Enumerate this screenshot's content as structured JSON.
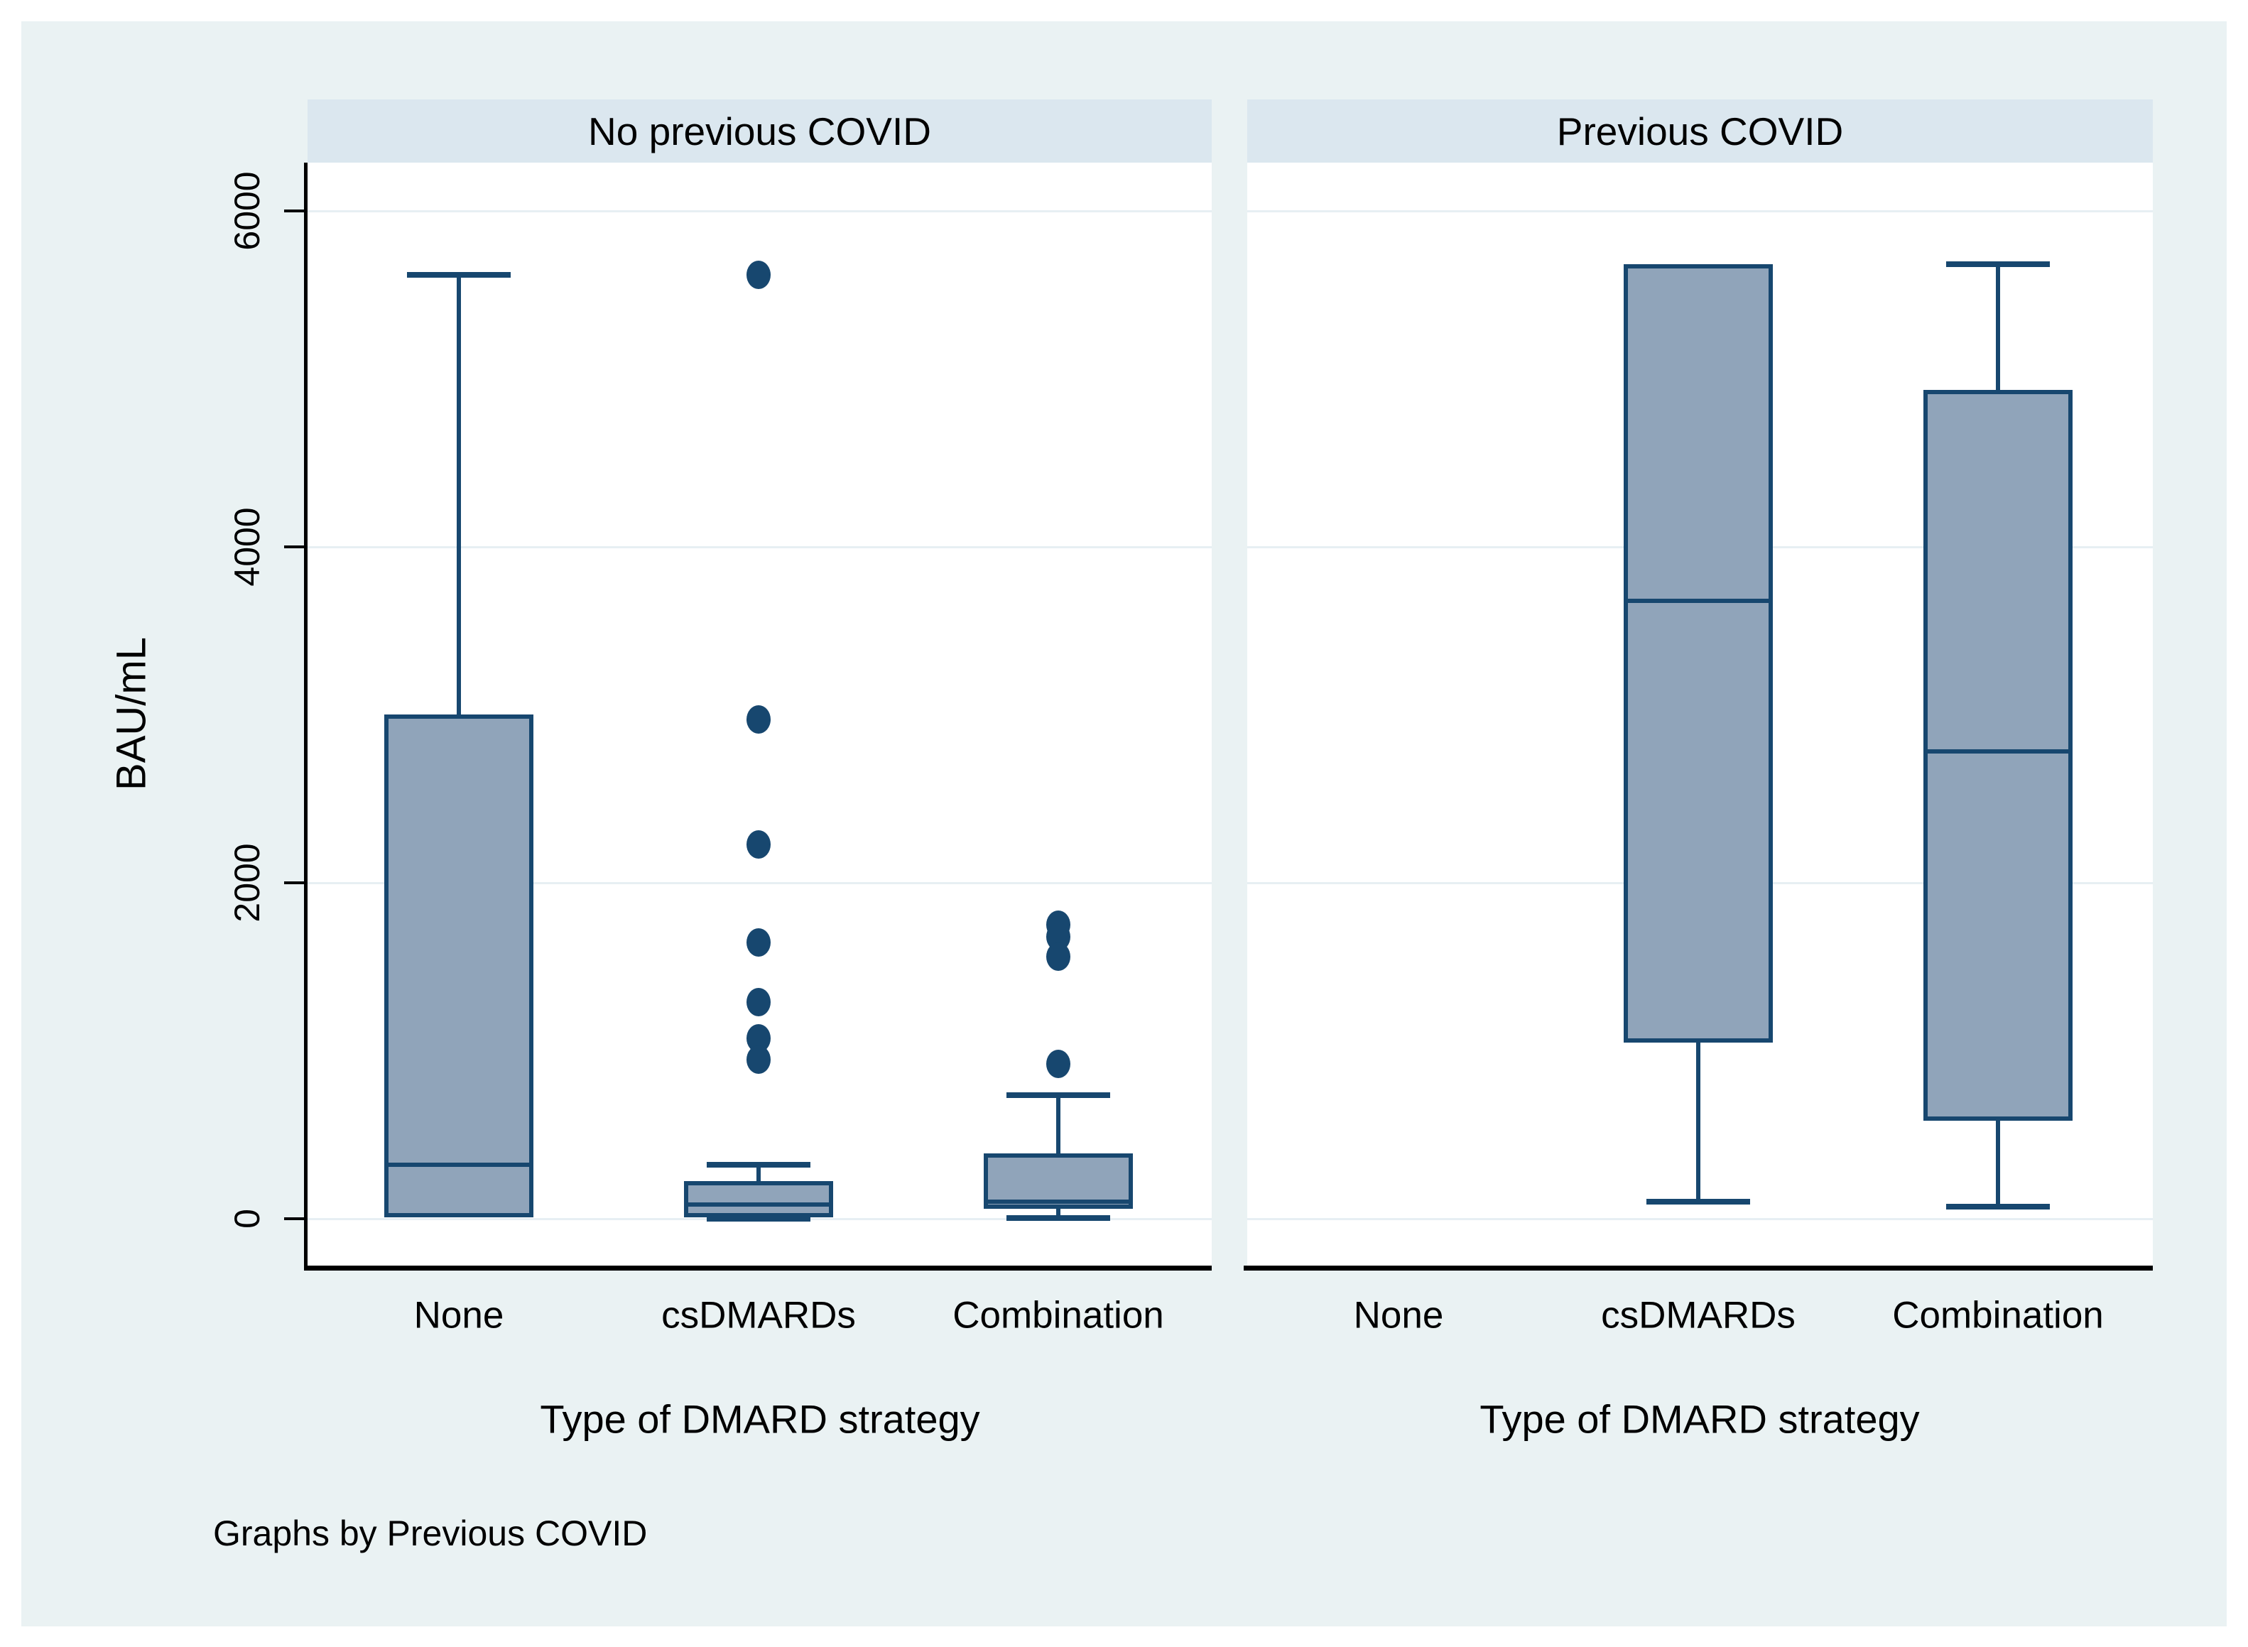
{
  "figure": {
    "ylabel": "BAU/mL",
    "xlabel": "Type of DMARD strategy",
    "note": "Graphs by Previous COVID",
    "by_variable": "Previous COVID"
  },
  "colors": {
    "figure_background": "#eaf2f3",
    "plot_background": "#ffffff",
    "strip_background": "#dbe7ef",
    "gridline": "#e7eff3",
    "box_fill": "#90a4ba",
    "box_stroke": "#17476f",
    "axis": "#000000"
  },
  "chart_data": {
    "type": "box",
    "title": "",
    "xlabel": "Type of DMARD strategy",
    "ylabel": "BAU/mL",
    "categories": [
      "None",
      "csDMARDs",
      "Combination"
    ],
    "yticks": [
      0,
      2000,
      4000,
      6000
    ],
    "ylim": [
      -280,
      6290
    ],
    "grid": true,
    "legend": "none",
    "panels": [
      {
        "title": "No previous COVID",
        "boxes": [
          {
            "category": "None",
            "q1": 10,
            "median": 320,
            "q3": 3000,
            "whisker_low": 10,
            "whisker_high": 5620,
            "outliers": []
          },
          {
            "category": "csDMARDs",
            "q1": 10,
            "median": 85,
            "q3": 225,
            "whisker_low": 0,
            "whisker_high": 320,
            "outliers": [
              5620,
              2970,
              2230,
              1645,
              1290,
              1075,
              945
            ]
          },
          {
            "category": "Combination",
            "q1": 60,
            "median": 100,
            "q3": 390,
            "whisker_low": 5,
            "whisker_high": 735,
            "outliers": [
              1750,
              1680,
              1560,
              920
            ]
          }
        ]
      },
      {
        "title": "Previous COVID",
        "boxes": [
          {
            "category": "None",
            "empty": true
          },
          {
            "category": "csDMARDs",
            "q1": 1050,
            "median": 3680,
            "q3": 5680,
            "whisker_low": 100,
            "whisker_high": 5680,
            "outliers": []
          },
          {
            "category": "Combination",
            "q1": 585,
            "median": 2780,
            "q3": 4935,
            "whisker_low": 70,
            "whisker_high": 5680,
            "outliers": []
          }
        ]
      }
    ]
  }
}
